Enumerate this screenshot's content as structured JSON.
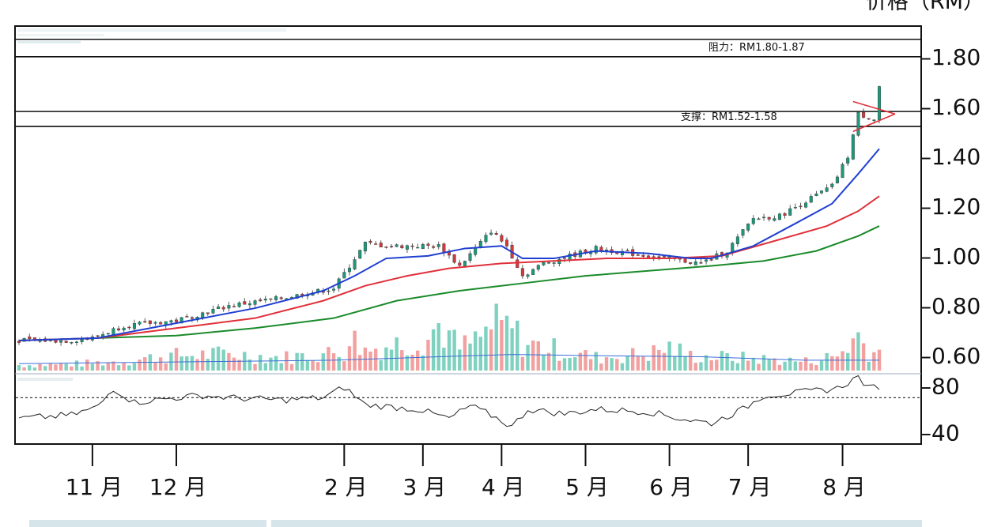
{
  "unit_label": "价格（RM）",
  "annotations": {
    "resistance": "阻力：RM1.80-1.87",
    "support": "支撑：RM1.52-1.58"
  },
  "colors": {
    "ma_fast": "#1f3fd1",
    "ma_mid": "#e0303a",
    "ma_slow": "#1a8a2a",
    "candle_up": "#1a9a7a",
    "candle_down": "#d23a3a",
    "vol_up": "#7fd1c0",
    "vol_down": "#f2a0a0",
    "triangle": "#e0303a"
  },
  "chart_data": {
    "type": "line",
    "y_ticks": [
      "–1.80",
      "–1.60",
      "–1.40",
      "–1.20",
      "–1.00",
      "–0.80",
      "–0.60"
    ],
    "y_tick_values": [
      1.8,
      1.6,
      1.4,
      1.2,
      1.0,
      0.8,
      0.6
    ],
    "ylim": [
      0.53,
      1.92
    ],
    "x_ticks": [
      "11 月",
      "12 月",
      "2 月",
      "3 月",
      "4 月",
      "5 月",
      "6 月",
      "7 月",
      "8 月"
    ],
    "x_tick_index": [
      14,
      30,
      62,
      77,
      92,
      108,
      124,
      139,
      157
    ],
    "num_bars": 165,
    "resistance_band": [
      1.8,
      1.87
    ],
    "support_band": [
      1.52,
      1.58
    ],
    "price": [
      [
        0,
        0.66
      ],
      [
        10,
        0.66
      ],
      [
        14,
        0.67
      ],
      [
        20,
        0.72
      ],
      [
        30,
        0.74
      ],
      [
        40,
        0.8
      ],
      [
        50,
        0.83
      ],
      [
        60,
        0.87
      ],
      [
        66,
        1.05
      ],
      [
        70,
        1.04
      ],
      [
        80,
        1.04
      ],
      [
        84,
        0.96
      ],
      [
        90,
        1.1
      ],
      [
        93,
        1.04
      ],
      [
        96,
        0.92
      ],
      [
        100,
        0.97
      ],
      [
        110,
        1.03
      ],
      [
        120,
        1.0
      ],
      [
        130,
        0.97
      ],
      [
        135,
        1.02
      ],
      [
        140,
        1.15
      ],
      [
        145,
        1.16
      ],
      [
        150,
        1.22
      ],
      [
        155,
        1.28
      ],
      [
        158,
        1.4
      ],
      [
        160,
        1.57
      ],
      [
        163,
        1.55
      ],
      [
        164,
        1.68
      ]
    ],
    "ma_fast": [
      [
        0,
        0.66
      ],
      [
        15,
        0.67
      ],
      [
        30,
        0.73
      ],
      [
        45,
        0.79
      ],
      [
        58,
        0.86
      ],
      [
        64,
        0.92
      ],
      [
        70,
        0.99
      ],
      [
        78,
        1.0
      ],
      [
        85,
        1.03
      ],
      [
        92,
        1.04
      ],
      [
        96,
        0.99
      ],
      [
        102,
        0.99
      ],
      [
        110,
        1.02
      ],
      [
        120,
        1.01
      ],
      [
        128,
        0.99
      ],
      [
        132,
        0.99
      ],
      [
        140,
        1.04
      ],
      [
        148,
        1.13
      ],
      [
        155,
        1.21
      ],
      [
        160,
        1.33
      ],
      [
        164,
        1.43
      ]
    ],
    "ma_mid": [
      [
        0,
        0.66
      ],
      [
        15,
        0.67
      ],
      [
        30,
        0.71
      ],
      [
        45,
        0.75
      ],
      [
        58,
        0.82
      ],
      [
        66,
        0.88
      ],
      [
        74,
        0.92
      ],
      [
        82,
        0.95
      ],
      [
        92,
        0.97
      ],
      [
        102,
        0.98
      ],
      [
        112,
        0.99
      ],
      [
        124,
        0.99
      ],
      [
        134,
        1.0
      ],
      [
        144,
        1.06
      ],
      [
        154,
        1.12
      ],
      [
        160,
        1.18
      ],
      [
        164,
        1.24
      ]
    ],
    "ma_slow": [
      [
        0,
        0.66
      ],
      [
        15,
        0.67
      ],
      [
        30,
        0.68
      ],
      [
        45,
        0.71
      ],
      [
        60,
        0.75
      ],
      [
        72,
        0.82
      ],
      [
        84,
        0.86
      ],
      [
        96,
        0.89
      ],
      [
        108,
        0.92
      ],
      [
        120,
        0.94
      ],
      [
        132,
        0.96
      ],
      [
        142,
        0.98
      ],
      [
        152,
        1.02
      ],
      [
        160,
        1.08
      ],
      [
        164,
        1.12
      ]
    ],
    "volume": [
      [
        0,
        6
      ],
      [
        10,
        7
      ],
      [
        20,
        10
      ],
      [
        28,
        16
      ],
      [
        40,
        18
      ],
      [
        50,
        14
      ],
      [
        62,
        20
      ],
      [
        63,
        38
      ],
      [
        66,
        22
      ],
      [
        78,
        36
      ],
      [
        80,
        50
      ],
      [
        84,
        24
      ],
      [
        88,
        35
      ],
      [
        90,
        48
      ],
      [
        94,
        46
      ],
      [
        96,
        30
      ],
      [
        110,
        14
      ],
      [
        120,
        18
      ],
      [
        124,
        25
      ],
      [
        128,
        16
      ],
      [
        140,
        13
      ],
      [
        150,
        10
      ],
      [
        156,
        16
      ],
      [
        160,
        38
      ],
      [
        162,
        22
      ],
      [
        164,
        20
      ]
    ],
    "volume_ma": [
      [
        0,
        6
      ],
      [
        20,
        7
      ],
      [
        40,
        8
      ],
      [
        60,
        9
      ],
      [
        80,
        12
      ],
      [
        94,
        14
      ],
      [
        110,
        13
      ],
      [
        130,
        12
      ],
      [
        150,
        9
      ],
      [
        164,
        9
      ]
    ],
    "rsi_ticks": [
      "–80",
      "–40"
    ],
    "rsi_tick_values": [
      80,
      40
    ],
    "rsi_ylim": [
      30,
      90
    ],
    "rsi_ref_line": 70,
    "rsi": [
      [
        0,
        52
      ],
      [
        10,
        55
      ],
      [
        15,
        62
      ],
      [
        18,
        78
      ],
      [
        22,
        66
      ],
      [
        30,
        70
      ],
      [
        35,
        72
      ],
      [
        40,
        70
      ],
      [
        50,
        68
      ],
      [
        58,
        70
      ],
      [
        62,
        79
      ],
      [
        66,
        64
      ],
      [
        76,
        60
      ],
      [
        82,
        52
      ],
      [
        86,
        63
      ],
      [
        90,
        55
      ],
      [
        94,
        45
      ],
      [
        97,
        60
      ],
      [
        104,
        56
      ],
      [
        110,
        60
      ],
      [
        120,
        58
      ],
      [
        126,
        52
      ],
      [
        132,
        48
      ],
      [
        138,
        60
      ],
      [
        142,
        72
      ],
      [
        148,
        74
      ],
      [
        156,
        78
      ],
      [
        160,
        88
      ],
      [
        162,
        78
      ],
      [
        164,
        80
      ]
    ]
  }
}
